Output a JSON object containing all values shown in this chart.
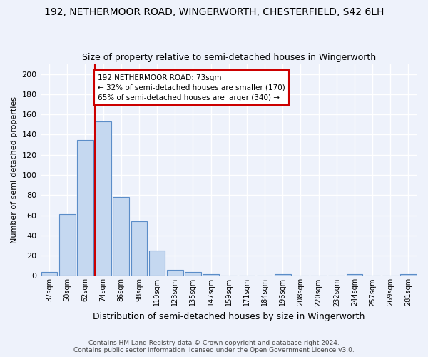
{
  "title": "192, NETHERMOOR ROAD, WINGERWORTH, CHESTERFIELD, S42 6LH",
  "subtitle": "Size of property relative to semi-detached houses in Wingerworth",
  "xlabel": "Distribution of semi-detached houses by size in Wingerworth",
  "ylabel": "Number of semi-detached properties",
  "bin_labels": [
    "37sqm",
    "50sqm",
    "62sqm",
    "74sqm",
    "86sqm",
    "98sqm",
    "110sqm",
    "123sqm",
    "135sqm",
    "147sqm",
    "159sqm",
    "171sqm",
    "184sqm",
    "196sqm",
    "208sqm",
    "220sqm",
    "232sqm",
    "244sqm",
    "257sqm",
    "269sqm",
    "281sqm"
  ],
  "bar_values": [
    4,
    61,
    135,
    153,
    78,
    54,
    25,
    6,
    4,
    2,
    0,
    0,
    0,
    2,
    0,
    0,
    0,
    2,
    0,
    0,
    2
  ],
  "bar_color": "#c5d8f0",
  "bar_edge_color": "#5b8dc8",
  "ylim": [
    0,
    210
  ],
  "yticks": [
    0,
    20,
    40,
    60,
    80,
    100,
    120,
    140,
    160,
    180,
    200
  ],
  "vline_x_index": 2.55,
  "vline_color": "#cc0000",
  "annotation_text": "192 NETHERMOOR ROAD: 73sqm\n← 32% of semi-detached houses are smaller (170)\n65% of semi-detached houses are larger (340) →",
  "annotation_box_color": "#ffffff",
  "annotation_box_edge": "#cc0000",
  "footer": "Contains HM Land Registry data © Crown copyright and database right 2024.\nContains public sector information licensed under the Open Government Licence v3.0.",
  "background_color": "#eef2fb",
  "grid_color": "#ffffff",
  "title_fontsize": 10,
  "subtitle_fontsize": 9,
  "footer_fontsize": 6.5
}
